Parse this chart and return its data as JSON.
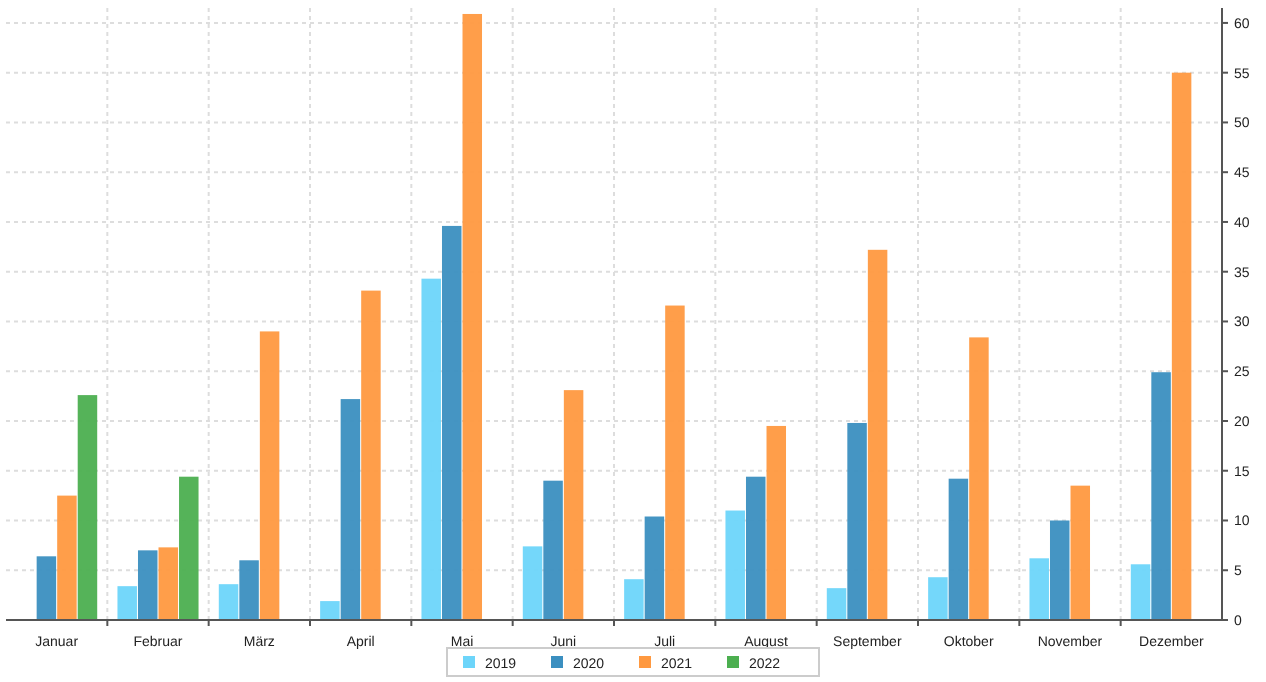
{
  "chart_data": {
    "type": "bar",
    "categories": [
      "Januar",
      "Februar",
      "März",
      "April",
      "Mai",
      "Juni",
      "Juli",
      "August",
      "September",
      "Oktober",
      "November",
      "Dezember"
    ],
    "series": [
      {
        "name": "2019",
        "color": "#6dd5fa",
        "values": [
          null,
          3.4,
          3.6,
          1.9,
          34.3,
          7.4,
          4.1,
          11.0,
          3.2,
          4.3,
          6.2,
          5.6
        ]
      },
      {
        "name": "2020",
        "color": "#3b8fc0",
        "values": [
          6.4,
          7.0,
          6.0,
          22.2,
          39.6,
          14.0,
          10.4,
          14.4,
          19.8,
          14.2,
          10.0,
          24.9
        ]
      },
      {
        "name": "2021",
        "color": "#ff9940",
        "values": [
          12.5,
          7.3,
          29.0,
          33.1,
          60.9,
          23.1,
          31.6,
          19.5,
          37.2,
          28.4,
          13.5,
          55.0
        ]
      },
      {
        "name": "2022",
        "color": "#4caf50",
        "values": [
          22.6,
          14.4,
          null,
          null,
          null,
          null,
          null,
          null,
          null,
          null,
          null,
          null
        ]
      }
    ],
    "ylim": [
      0,
      61.5
    ],
    "yticks": [
      0,
      5,
      10,
      15,
      20,
      25,
      30,
      35,
      40,
      45,
      50,
      55,
      60
    ],
    "grid": true,
    "legend": "bottom"
  }
}
